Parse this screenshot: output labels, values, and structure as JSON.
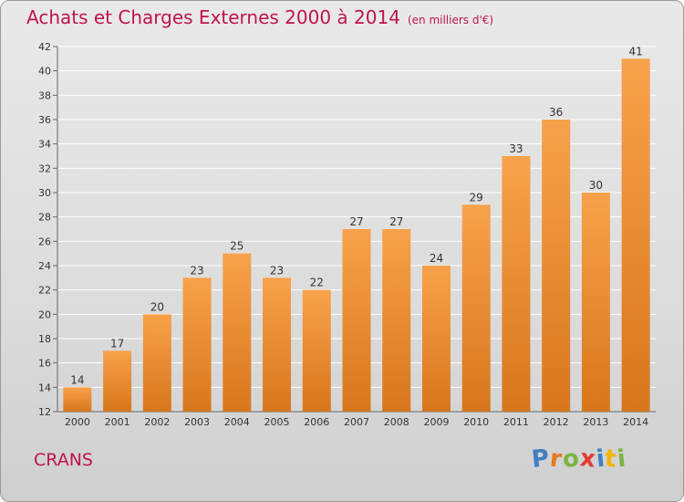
{
  "header": {
    "title": "Achats et Charges Externes 2000 à 2014",
    "subtitle": "(en milliers d'€)"
  },
  "footer": {
    "place": "CRANS",
    "logo_letters": [
      "P",
      "r",
      "o",
      "x",
      "i",
      "t",
      "i"
    ],
    "logo_colors": [
      "#3d7fc1",
      "#e8781e",
      "#7cb342",
      "#e53935",
      "#3d7fc1",
      "#f4b400",
      "#7cb342"
    ]
  },
  "colors": {
    "bar_top": "#f7a24b",
    "bar_bottom": "#d8761c",
    "grid": "#ffffff",
    "axis_text": "#333333"
  },
  "chart_data": {
    "type": "bar",
    "title": "Achats et Charges Externes 2000 à 2014",
    "subtitle": "(en milliers d'€)",
    "xlabel": "",
    "ylabel": "",
    "categories": [
      "2000",
      "2001",
      "2002",
      "2003",
      "2004",
      "2005",
      "2006",
      "2007",
      "2008",
      "2009",
      "2010",
      "2011",
      "2012",
      "2013",
      "2014"
    ],
    "values": [
      14,
      17,
      20,
      23,
      25,
      23,
      22,
      27,
      27,
      24,
      29,
      33,
      36,
      30,
      41
    ],
    "ylim": [
      12,
      42
    ],
    "yticks": [
      12,
      14,
      16,
      18,
      20,
      22,
      24,
      26,
      28,
      30,
      32,
      34,
      36,
      38,
      40,
      42
    ],
    "grid": true,
    "data_labels": true
  }
}
